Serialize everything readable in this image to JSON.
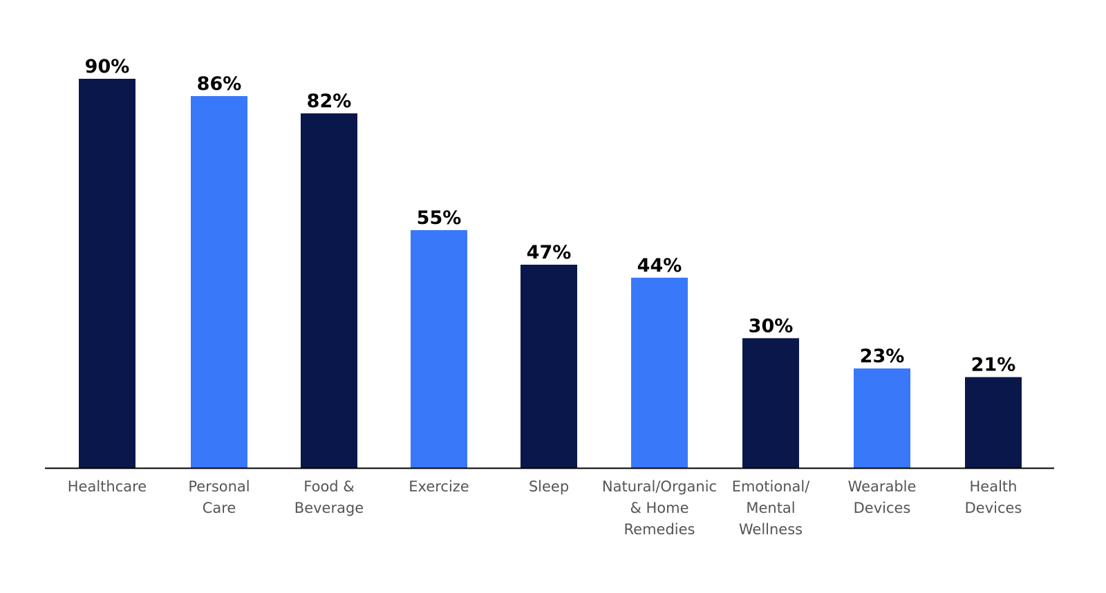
{
  "chart_data": {
    "type": "bar",
    "categories": [
      [
        "Healthcare"
      ],
      [
        "Personal",
        "Care"
      ],
      [
        "Food &",
        "Beverage"
      ],
      [
        "Exercize"
      ],
      [
        "Sleep"
      ],
      [
        "Natural/Organic",
        "& Home",
        "Remedies"
      ],
      [
        "Emotional/",
        "Mental",
        "Wellness"
      ],
      [
        "Wearable",
        "Devices"
      ],
      [
        "Health",
        "Devices"
      ]
    ],
    "values": [
      90,
      86,
      82,
      55,
      47,
      44,
      30,
      23,
      21
    ],
    "value_labels": [
      "90%",
      "86%",
      "82%",
      "55%",
      "47%",
      "44%",
      "30%",
      "23%",
      "21%"
    ],
    "bar_colors": [
      "#0a174a",
      "#3a78fa",
      "#0a174a",
      "#3a78fa",
      "#0a174a",
      "#3a78fa",
      "#0a174a",
      "#3a78fa",
      "#0a174a"
    ],
    "title": "",
    "xlabel": "",
    "ylabel": "",
    "ylim": [
      0,
      100
    ],
    "grid": false,
    "legend": "none"
  }
}
